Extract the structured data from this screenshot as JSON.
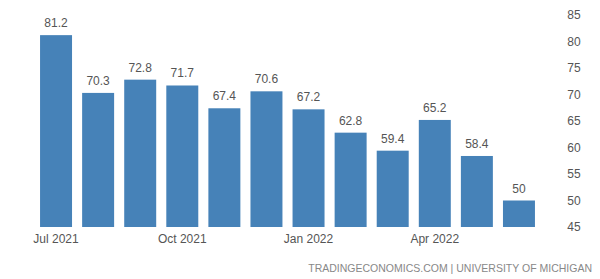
{
  "chart_data": {
    "type": "bar",
    "categories": [
      "Jul 2021",
      null,
      null,
      "Oct 2021",
      null,
      null,
      "Jan 2022",
      null,
      null,
      "Apr 2022",
      null,
      null
    ],
    "values": [
      81.2,
      70.3,
      72.8,
      71.7,
      67.4,
      70.6,
      67.2,
      62.8,
      59.4,
      65.2,
      58.4,
      50
    ],
    "color": "#4682b8",
    "ylim": [
      45,
      85
    ],
    "yticks": [
      45,
      50,
      55,
      60,
      65,
      70,
      75,
      80,
      85
    ],
    "grid": false,
    "data_labels": true,
    "source": "TRADINGECONOMICS.COM | UNIVERSITY OF MICHIGAN"
  }
}
